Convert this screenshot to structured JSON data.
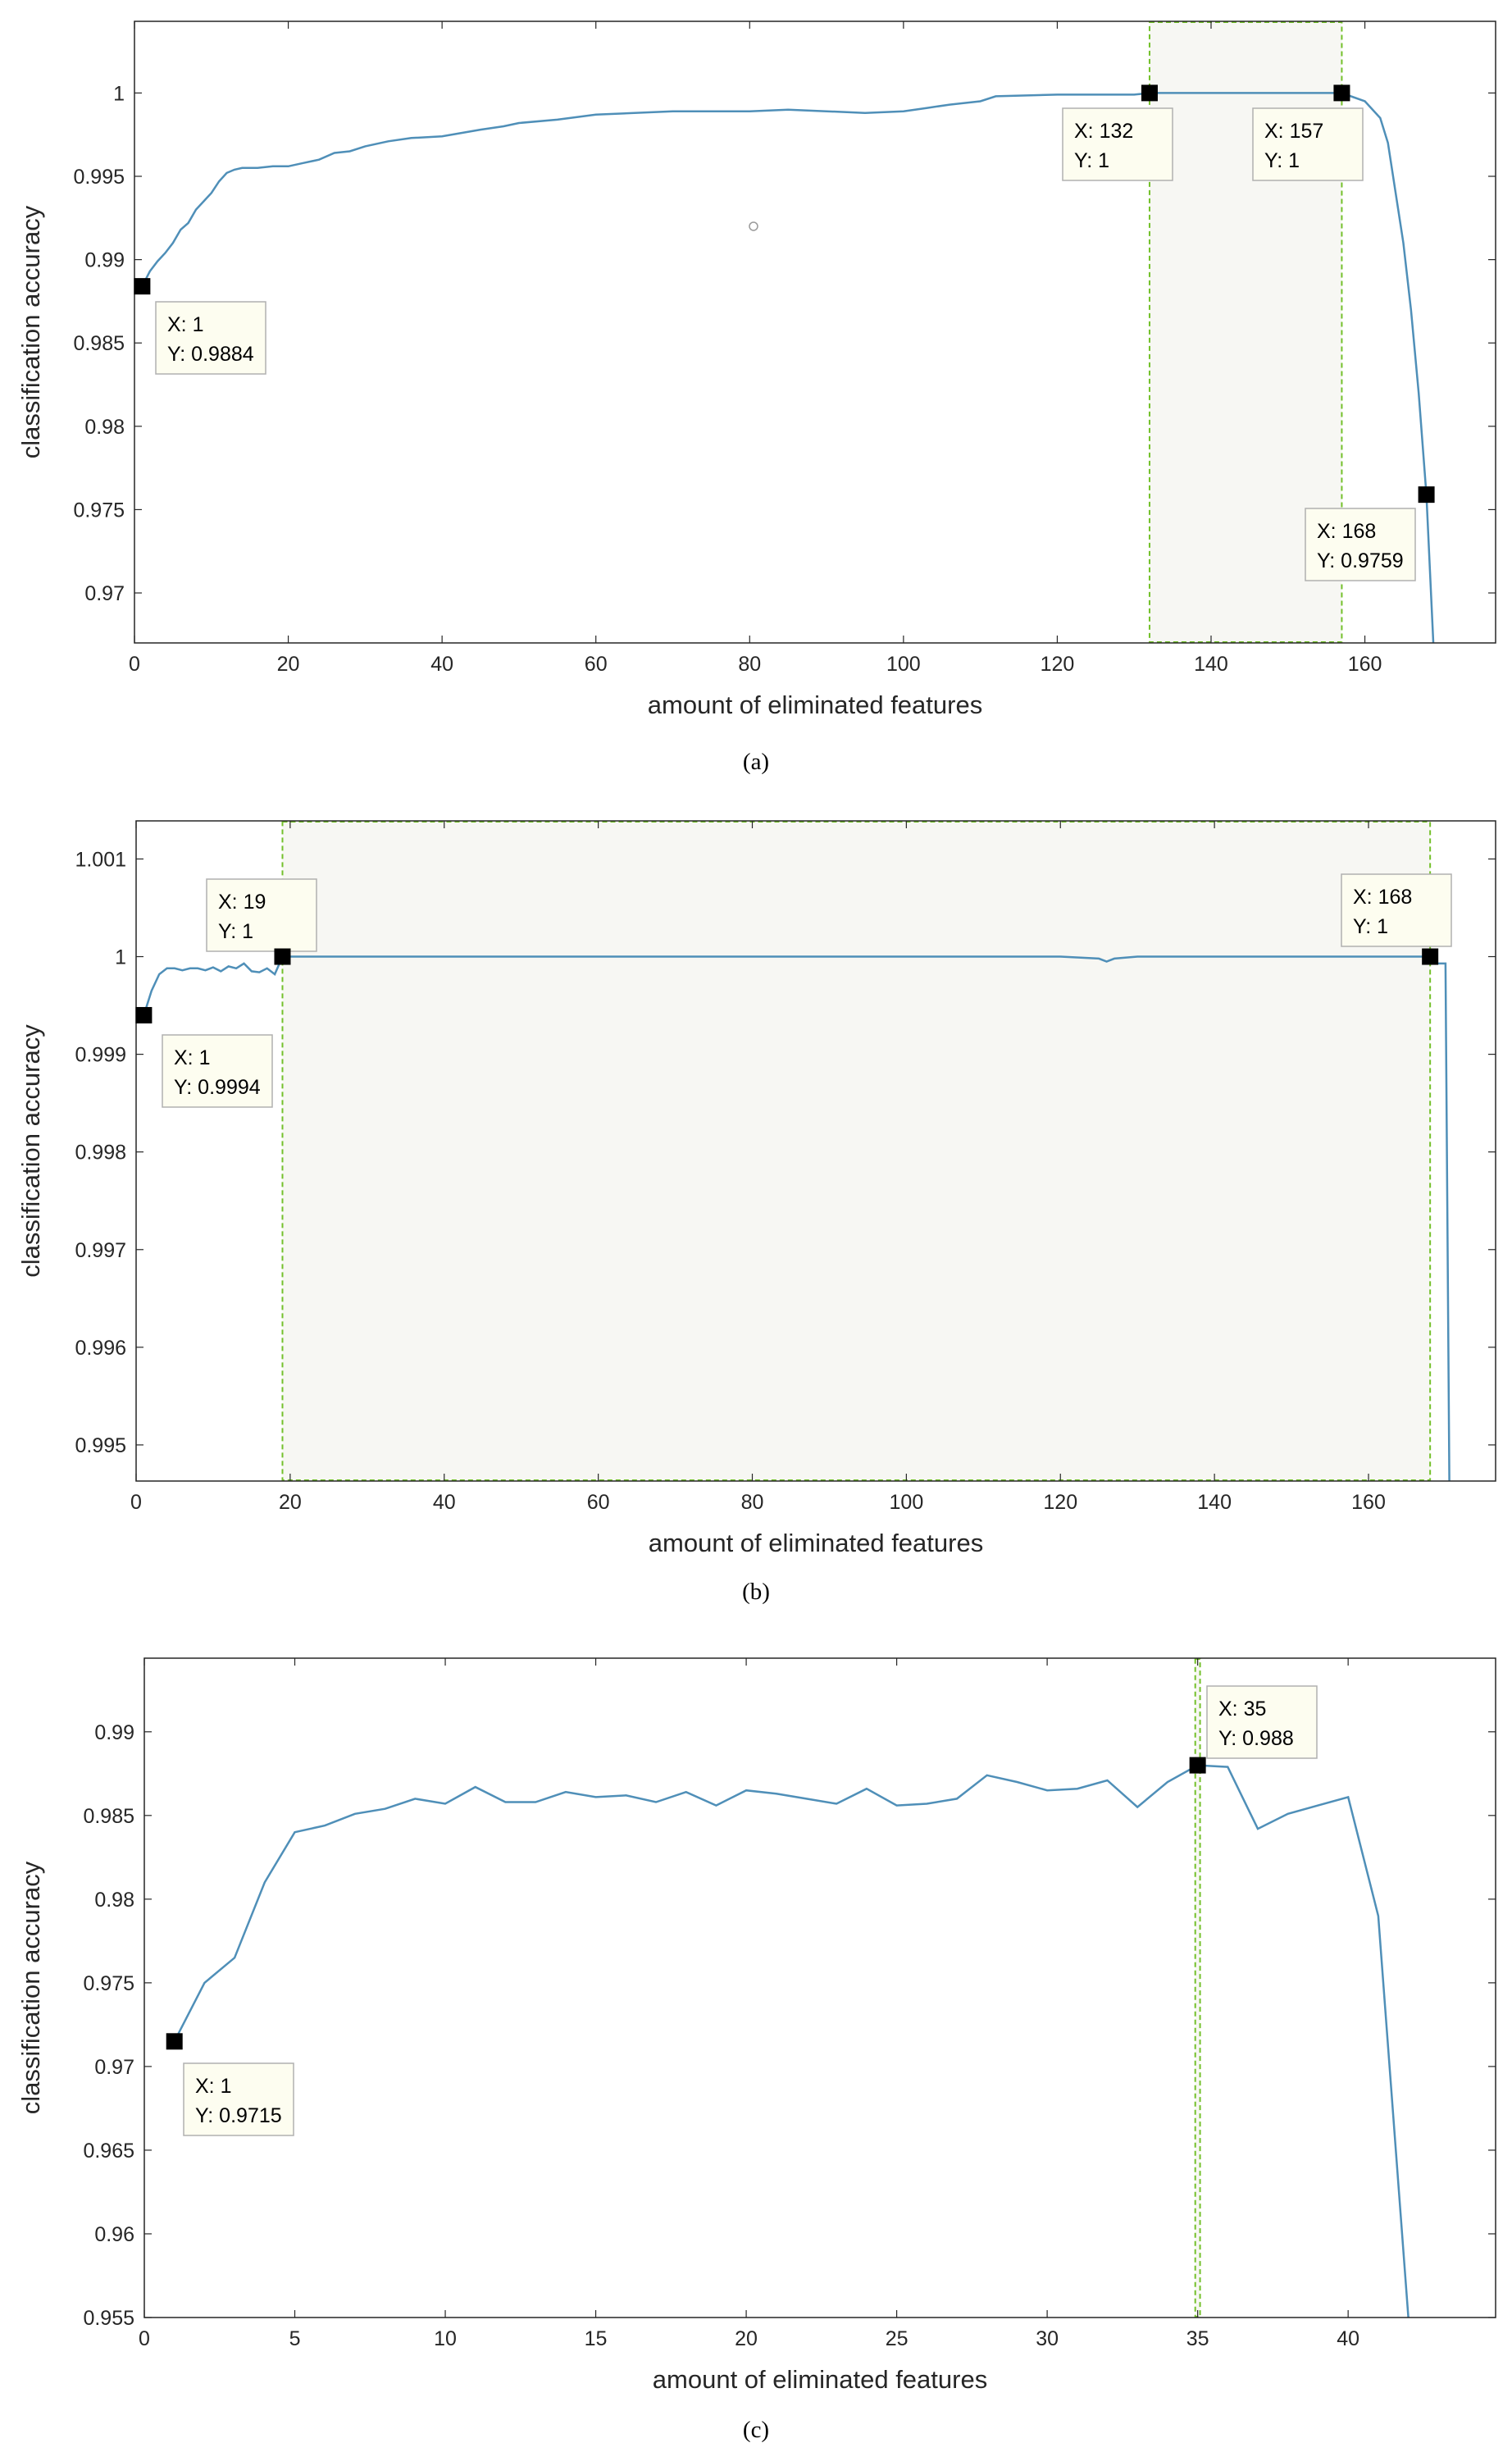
{
  "colors": {
    "line": "#4f8fb8",
    "axes": "#262626",
    "datatip_fill": "#fdfdf0",
    "datatip_border": "#b0b0b0",
    "selection_border": "#73c02a",
    "selection_fill": "#f7f7f3",
    "marker": "#000000"
  },
  "chart_data": [
    {
      "type": "line",
      "caption": "(a)",
      "xlabel": "amount of eliminated features",
      "ylabel": "classification accuracy",
      "xlim": [
        0,
        177
      ],
      "ylim": [
        0.967,
        1.0043
      ],
      "xticks": [
        0,
        20,
        40,
        60,
        80,
        100,
        120,
        140,
        160
      ],
      "xtick_labels": [
        "0",
        "20",
        "40",
        "60",
        "80",
        "100",
        "120",
        "140",
        "160"
      ],
      "yticks": [
        0.97,
        0.975,
        0.98,
        0.985,
        0.99,
        0.995,
        1
      ],
      "ytick_labels": [
        "0.97",
        "0.975",
        "0.98",
        "0.985",
        "0.99",
        "0.995",
        "1"
      ],
      "grid": false,
      "selection_x": [
        132,
        157
      ],
      "series": [
        {
          "x": [
            1,
            2,
            3,
            4,
            5,
            6,
            7,
            8,
            9,
            10,
            11,
            12,
            13,
            14,
            15,
            16,
            18,
            20,
            22,
            24,
            26,
            28,
            30,
            33,
            36,
            40,
            45,
            48,
            50,
            55,
            60,
            65,
            70,
            75,
            80,
            85,
            90,
            95,
            100,
            103,
            106,
            110,
            112,
            120,
            126,
            130,
            132,
            140,
            150,
            157,
            160,
            162,
            163,
            164,
            165,
            166,
            167,
            168,
            169
          ],
          "y": [
            0.9884,
            0.9893,
            0.9899,
            0.9904,
            0.991,
            0.9918,
            0.9922,
            0.993,
            0.9935,
            0.994,
            0.9947,
            0.9952,
            0.9954,
            0.9955,
            0.9955,
            0.9955,
            0.9956,
            0.9956,
            0.9958,
            0.996,
            0.9964,
            0.9965,
            0.9968,
            0.9971,
            0.9973,
            0.9974,
            0.9978,
            0.998,
            0.9982,
            0.9984,
            0.9987,
            0.9988,
            0.9989,
            0.9989,
            0.9989,
            0.999,
            0.9989,
            0.9988,
            0.9989,
            0.9991,
            0.9993,
            0.9995,
            0.9998,
            0.9999,
            0.9999,
            0.9999,
            1.0,
            1.0,
            1.0,
            1.0,
            0.9995,
            0.9985,
            0.997,
            0.994,
            0.991,
            0.987,
            0.982,
            0.9759,
            0.966
          ]
        }
      ],
      "points": [
        {
          "x": 1,
          "y": 0.9884
        },
        {
          "x": 132,
          "y": 1
        },
        {
          "x": 157,
          "y": 1
        },
        {
          "x": 168,
          "y": 0.9759
        }
      ],
      "datatips": [
        {
          "x_label": "X: 1",
          "y_label": "Y: 0.9884"
        },
        {
          "x_label": "X: 132",
          "y_label": "Y: 1"
        },
        {
          "x_label": "X: 157",
          "y_label": "Y: 1"
        },
        {
          "x_label": "X: 168",
          "y_label": "Y: 0.9759"
        }
      ],
      "annotation_circle": {
        "x": 80.5,
        "y": 0.992
      }
    },
    {
      "type": "line",
      "caption": "(b)",
      "xlabel": "amount of eliminated features",
      "ylabel": "classification accuracy",
      "xlim": [
        0,
        176.5
      ],
      "ylim": [
        0.99463,
        1.00139
      ],
      "xticks": [
        0,
        20,
        40,
        60,
        80,
        100,
        120,
        140,
        160
      ],
      "xtick_labels": [
        "0",
        "20",
        "40",
        "60",
        "80",
        "100",
        "120",
        "140",
        "160"
      ],
      "yticks": [
        0.995,
        0.996,
        0.997,
        0.998,
        0.999,
        1,
        1.001
      ],
      "ytick_labels": [
        "0.995",
        "0.996",
        "0.997",
        "0.998",
        "0.999",
        "1",
        "1.001"
      ],
      "grid": false,
      "selection_x": [
        19,
        168
      ],
      "series": [
        {
          "x": [
            1,
            2,
            3,
            4,
            5,
            6,
            7,
            8,
            9,
            10,
            11,
            12,
            13,
            14,
            15,
            16,
            17,
            18,
            19,
            20,
            40,
            60,
            80,
            100,
            120,
            125,
            126,
            127,
            130,
            150,
            168,
            169,
            170,
            170.5
          ],
          "y": [
            0.9994,
            0.99965,
            0.99982,
            0.99988,
            0.99988,
            0.99986,
            0.99988,
            0.99988,
            0.99986,
            0.99989,
            0.99985,
            0.9999,
            0.99988,
            0.99993,
            0.99985,
            0.99984,
            0.99988,
            0.99982,
            1,
            1,
            1,
            1,
            1,
            1,
            1,
            0.99998,
            0.99995,
            0.99998,
            1,
            1,
            1,
            0.99993,
            0.99993,
            0.99463
          ]
        }
      ],
      "points": [
        {
          "x": 1,
          "y": 0.9994
        },
        {
          "x": 19,
          "y": 1
        },
        {
          "x": 168,
          "y": 1
        }
      ],
      "datatips": [
        {
          "x_label": "X: 1",
          "y_label": "Y: 0.9994"
        },
        {
          "x_label": "X: 19",
          "y_label": "Y: 1"
        },
        {
          "x_label": "X: 168",
          "y_label": "Y: 1"
        }
      ]
    },
    {
      "type": "line",
      "caption": "(c)",
      "xlabel": "amount of eliminated features",
      "ylabel": "classification accuracy",
      "xlim": [
        0,
        44.9
      ],
      "ylim": [
        0.955,
        0.9944
      ],
      "xticks": [
        0,
        5,
        10,
        15,
        20,
        25,
        30,
        35,
        40
      ],
      "xtick_labels": [
        "0",
        "5",
        "10",
        "15",
        "20",
        "25",
        "30",
        "35",
        "40"
      ],
      "yticks": [
        0.955,
        0.96,
        0.965,
        0.97,
        0.975,
        0.98,
        0.985,
        0.99
      ],
      "ytick_labels": [
        "0.955",
        "0.96",
        "0.965",
        "0.97",
        "0.975",
        "0.98",
        "0.985",
        "0.99"
      ],
      "grid": false,
      "selection_x": [
        34.92,
        35.08
      ],
      "series": [
        {
          "x": [
            1,
            2,
            3,
            4,
            5,
            6,
            7,
            8,
            9,
            10,
            11,
            12,
            13,
            14,
            15,
            16,
            17,
            18,
            19,
            20,
            21,
            22,
            23,
            24,
            25,
            26,
            27,
            28,
            29,
            30,
            31,
            32,
            33,
            34,
            35,
            36,
            37,
            38,
            39,
            40,
            41,
            42
          ],
          "y": [
            0.9715,
            0.975,
            0.9765,
            0.981,
            0.984,
            0.9844,
            0.9851,
            0.9854,
            0.986,
            0.9857,
            0.9867,
            0.9858,
            0.9858,
            0.9864,
            0.9861,
            0.9862,
            0.9858,
            0.9864,
            0.9856,
            0.9865,
            0.9863,
            0.986,
            0.9857,
            0.9866,
            0.9856,
            0.9857,
            0.986,
            0.9874,
            0.987,
            0.9865,
            0.9866,
            0.9871,
            0.9855,
            0.987,
            0.988,
            0.9879,
            0.9842,
            0.9851,
            0.9856,
            0.9861,
            0.979,
            0.955
          ]
        }
      ],
      "points": [
        {
          "x": 1,
          "y": 0.9715
        },
        {
          "x": 35,
          "y": 0.988
        }
      ],
      "datatips": [
        {
          "x_label": "X: 1",
          "y_label": "Y: 0.9715"
        },
        {
          "x_label": "X: 35",
          "y_label": "Y: 0.988"
        }
      ]
    }
  ]
}
